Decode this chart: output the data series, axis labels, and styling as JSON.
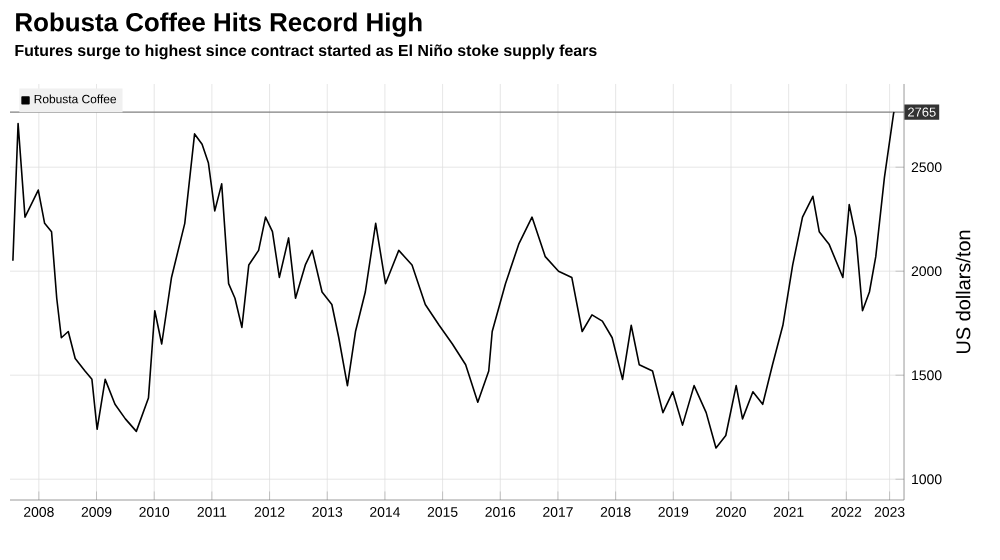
{
  "chart_data": {
    "type": "line",
    "title": "Robusta Coffee Hits Record High",
    "subtitle": "Futures surge to highest since contract started as El Niño stoke supply fears",
    "ylabel": "US dollars/ton",
    "x": [
      2008.05,
      2008.14,
      2008.26,
      2008.49,
      2008.6,
      2008.72,
      2008.81,
      2008.89,
      2009.01,
      2009.13,
      2009.3,
      2009.42,
      2009.51,
      2009.65,
      2009.82,
      2010.0,
      2010.19,
      2010.4,
      2010.51,
      2010.63,
      2010.8,
      2011.03,
      2011.2,
      2011.33,
      2011.44,
      2011.55,
      2011.67,
      2011.79,
      2011.9,
      2012.02,
      2012.14,
      2012.31,
      2012.43,
      2012.55,
      2012.67,
      2012.83,
      2012.95,
      2013.12,
      2013.24,
      2013.41,
      2013.58,
      2013.7,
      2013.85,
      2013.99,
      2014.16,
      2014.34,
      2014.51,
      2014.74,
      2014.97,
      2015.2,
      2015.44,
      2015.67,
      2015.9,
      2016.11,
      2016.3,
      2016.36,
      2016.59,
      2016.82,
      2017.05,
      2017.28,
      2017.51,
      2017.74,
      2017.92,
      2018.09,
      2018.27,
      2018.44,
      2018.62,
      2018.77,
      2018.91,
      2019.14,
      2019.32,
      2019.49,
      2019.66,
      2019.86,
      2020.07,
      2020.24,
      2020.41,
      2020.59,
      2020.7,
      2020.88,
      2021.05,
      2021.22,
      2021.4,
      2021.57,
      2021.74,
      2021.92,
      2022.03,
      2022.2,
      2022.44,
      2022.55,
      2022.67,
      2022.78,
      2022.9,
      2023.01,
      2023.16,
      2023.32,
      2023.33
    ],
    "series": [
      {
        "name": "Robusta Coffee",
        "color": "#000000",
        "values": [
          2050,
          2710,
          2260,
          2390,
          2230,
          2190,
          1870,
          1680,
          1710,
          1580,
          1520,
          1480,
          1240,
          1480,
          1360,
          1290,
          1230,
          1390,
          1810,
          1650,
          1970,
          2230,
          2660,
          2610,
          2520,
          2290,
          2420,
          1940,
          1870,
          1730,
          2030,
          2100,
          2260,
          2190,
          1970,
          2160,
          1870,
          2030,
          2100,
          1900,
          1840,
          1680,
          1450,
          1710,
          1900,
          2230,
          1940,
          2100,
          2030,
          1840,
          1740,
          1650,
          1550,
          1370,
          1520,
          1710,
          1940,
          2130,
          2260,
          2070,
          2000,
          1970,
          1710,
          1790,
          1760,
          1680,
          1480,
          1740,
          1550,
          1520,
          1320,
          1420,
          1260,
          1450,
          1320,
          1150,
          1210,
          1450,
          1290,
          1420,
          1360,
          1550,
          1740,
          2030,
          2260,
          2360,
          2190,
          2130,
          1970,
          2320,
          2160,
          1810,
          1900,
          2070,
          2450,
          2760,
          2765
        ]
      }
    ],
    "xlim": [
      2008,
      2023.5
    ],
    "ylim": [
      900,
      2900
    ],
    "xticks": [
      {
        "value": 2008.5,
        "label": "2008"
      },
      {
        "value": 2009.5,
        "label": "2009"
      },
      {
        "value": 2010.5,
        "label": "2010"
      },
      {
        "value": 2011.5,
        "label": "2011"
      },
      {
        "value": 2012.5,
        "label": "2012"
      },
      {
        "value": 2013.5,
        "label": "2013"
      },
      {
        "value": 2014.5,
        "label": "2014"
      },
      {
        "value": 2015.5,
        "label": "2015"
      },
      {
        "value": 2016.5,
        "label": "2016"
      },
      {
        "value": 2017.5,
        "label": "2017"
      },
      {
        "value": 2018.5,
        "label": "2018"
      },
      {
        "value": 2019.5,
        "label": "2019"
      },
      {
        "value": 2020.5,
        "label": "2020"
      },
      {
        "value": 2021.5,
        "label": "2021"
      },
      {
        "value": 2022.5,
        "label": "2022"
      },
      {
        "value": 2023.25,
        "label": "2023"
      }
    ],
    "yticks": [
      1000,
      1500,
      2000,
      2500
    ],
    "ref_lines": [
      {
        "axis": "y",
        "value": 2765,
        "label": "2765",
        "color": "#808080"
      }
    ],
    "grid": true,
    "legend": "top left",
    "marker": "none",
    "line_style": "solid"
  }
}
